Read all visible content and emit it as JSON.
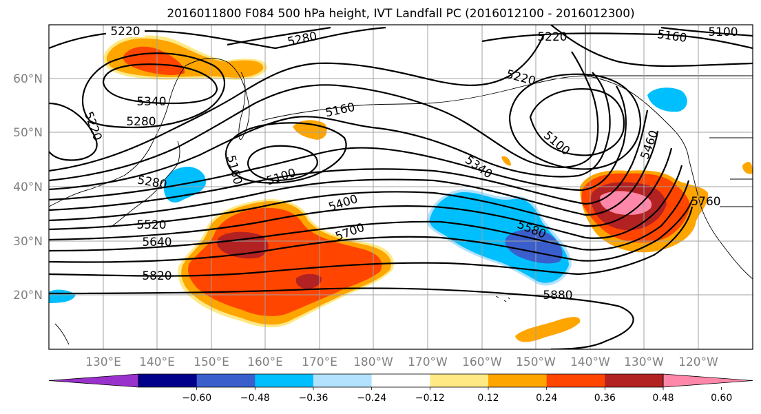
{
  "title": "2016011800 F084 500 hPa height, IVT Landfall PC (2016012100 - 2016012300)",
  "map": {
    "lat_labels": [
      "60°N",
      "50°N",
      "40°N",
      "30°N",
      "20°N"
    ],
    "lon_labels": [
      "130°E",
      "140°E",
      "150°E",
      "160°E",
      "170°E",
      "180°W",
      "170°W",
      "160°W",
      "150°W",
      "140°W",
      "130°W",
      "120°W"
    ],
    "contour_labels": [
      "5220",
      "5280",
      "5160",
      "5100",
      "5220",
      "5160",
      "5100",
      "5220",
      "5340",
      "5280",
      "5220",
      "5160",
      "5100",
      "5280",
      "5520",
      "5640",
      "5820",
      "5400",
      "5700",
      "5340",
      "5580",
      "5880",
      "5460",
      "5760"
    ]
  },
  "colorbar": {
    "ticks": [
      "−0.60",
      "−0.48",
      "−0.36",
      "−0.24",
      "−0.12",
      "0.12",
      "0.24",
      "0.36",
      "0.48",
      "0.60"
    ],
    "colors": [
      "#9932cc",
      "#00008b",
      "#3a5fcd",
      "#00bfff",
      "#b2e2fd",
      "#ffffff",
      "#ffe985",
      "#ffa500",
      "#ff4500",
      "#b22222",
      "#ff88aa"
    ]
  }
}
